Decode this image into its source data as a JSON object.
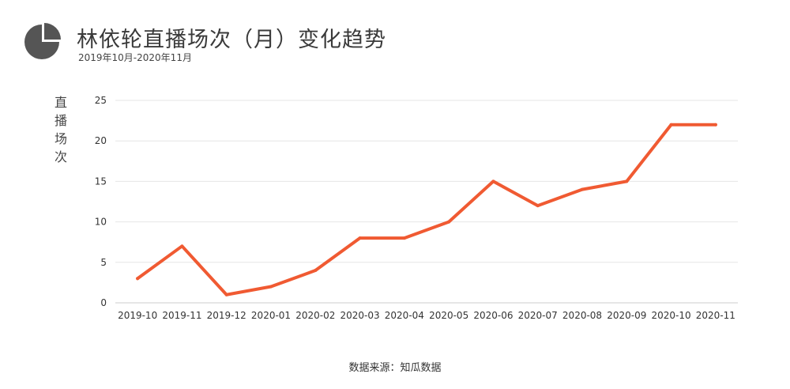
{
  "header": {
    "title": "林依轮直播场次（月）变化趋势",
    "subtitle": "2019年10月-2020年11月",
    "icon": "pie-chart-icon"
  },
  "footer": {
    "source": "数据来源：知瓜数据"
  },
  "colors": {
    "line": "#f05a32",
    "grid": "#e6e6e6",
    "icon": "#555555"
  },
  "chart_data": {
    "type": "line",
    "title": "林依轮直播场次（月）变化趋势",
    "subtitle": "2019年10月-2020年11月",
    "xlabel": "",
    "ylabel": "直播场次",
    "ylim": [
      0,
      25
    ],
    "yticks": [
      0,
      5,
      10,
      15,
      20,
      25
    ],
    "grid": true,
    "legend": "none",
    "categories": [
      "2019-10",
      "2019-11",
      "2019-12",
      "2020-01",
      "2020-02",
      "2020-03",
      "2020-04",
      "2020-05",
      "2020-06",
      "2020-07",
      "2020-08",
      "2020-09",
      "2020-10",
      "2020-11"
    ],
    "values": [
      3,
      7,
      1,
      2,
      4,
      8,
      8,
      10,
      15,
      12,
      14,
      15,
      22,
      22
    ]
  }
}
